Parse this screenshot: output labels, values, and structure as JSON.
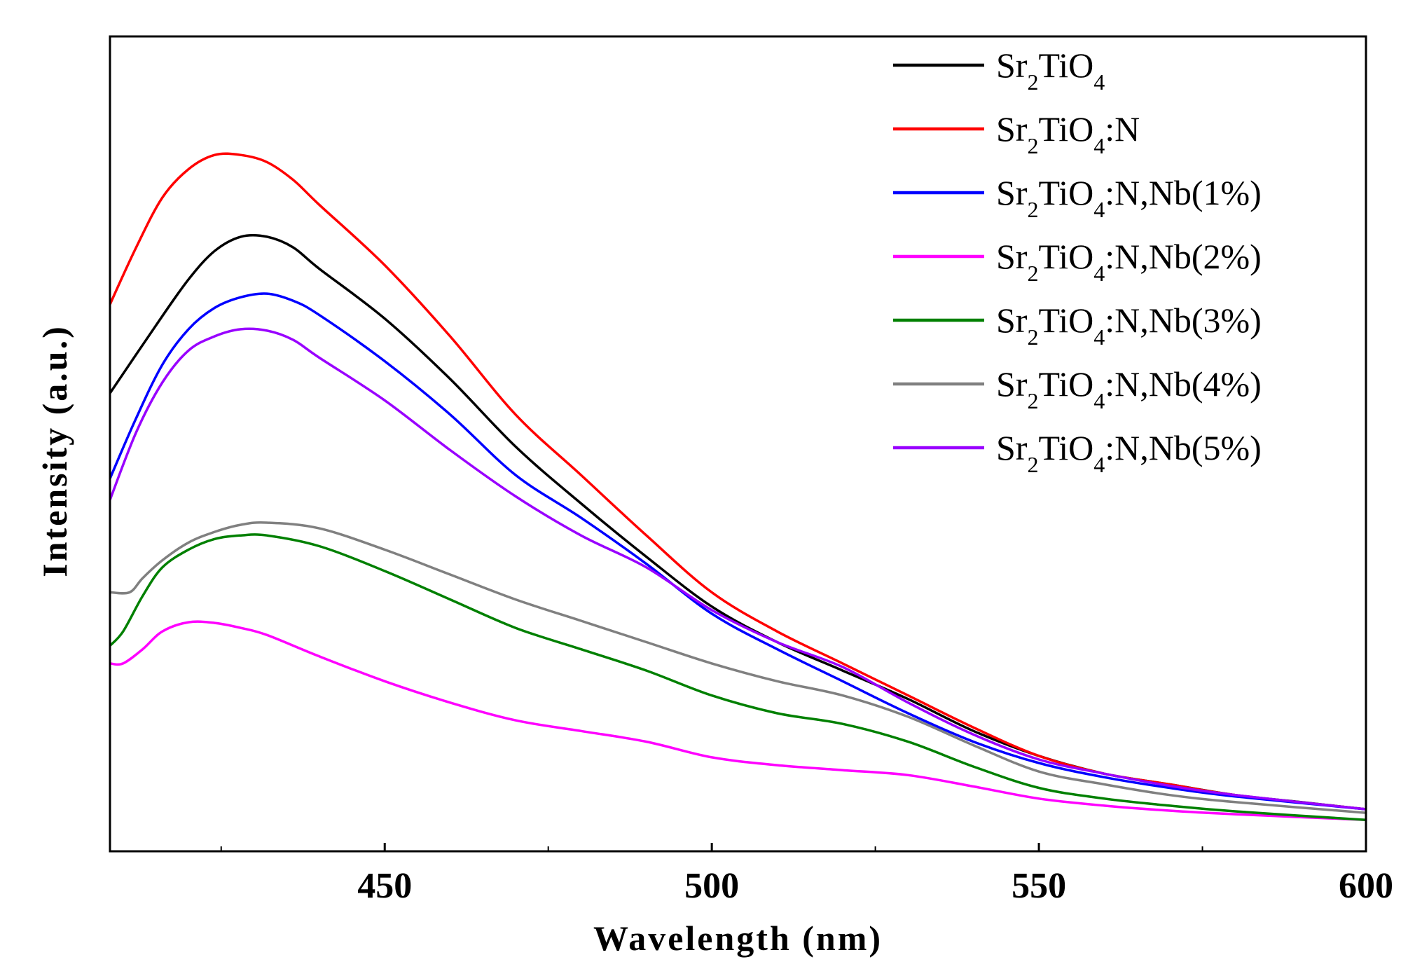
{
  "chart_data": {
    "type": "line",
    "title": "",
    "xlabel": "Wavelength (nm)",
    "ylabel": "Intensity (a.u.)",
    "xlim": [
      408,
      600
    ],
    "ylim": [
      0,
      100
    ],
    "xticks": [
      450,
      500,
      550,
      600
    ],
    "yticks_visible": false,
    "grid": false,
    "legend_position": "top-right",
    "series": [
      {
        "name": "Sr2TiO4",
        "base": "Sr",
        "sub1": "2",
        "mid": "TiO",
        "sub2": "4",
        "suffix": "",
        "color": "#000000",
        "x": [
          408,
          415,
          420,
          424,
          428,
          432,
          436,
          440,
          450,
          460,
          470,
          480,
          490,
          500,
          510,
          520,
          530,
          540,
          550,
          560,
          570,
          580,
          590,
          600
        ],
        "y": [
          58.5,
          68,
          74.5,
          78.5,
          80.5,
          80.5,
          79,
          76,
          69,
          60.5,
          51,
          43,
          35.5,
          28.5,
          23.5,
          19.5,
          15.5,
          11,
          7.5,
          5,
          3.5,
          2,
          1,
          0
        ]
      },
      {
        "name": "Sr2TiO4:N",
        "base": "Sr",
        "sub1": "2",
        "mid": "TiO",
        "sub2": "4",
        "suffix": ":N",
        "color": "#ff0000",
        "x": [
          408,
          412,
          416,
          420,
          424,
          428,
          432,
          436,
          440,
          450,
          460,
          470,
          480,
          490,
          500,
          510,
          520,
          530,
          540,
          550,
          560,
          570,
          580,
          600
        ],
        "y": [
          71,
          79,
          86,
          90,
          92,
          92,
          91,
          88.5,
          85,
          76.5,
          66.5,
          55.5,
          47,
          38.5,
          30.5,
          25,
          20.5,
          16,
          11.5,
          7.5,
          5,
          3.5,
          2,
          0
        ]
      },
      {
        "name": "Sr2TiO4:N,Nb(1%)",
        "base": "Sr",
        "sub1": "2",
        "mid": "TiO",
        "sub2": "4",
        "suffix": ":N,Nb(1%)",
        "color": "#0000ff",
        "x": [
          408,
          412,
          416,
          420,
          424,
          428,
          432,
          436,
          440,
          450,
          460,
          470,
          480,
          490,
          500,
          510,
          520,
          530,
          540,
          550,
          560,
          570,
          580,
          600
        ],
        "y": [
          46.5,
          55,
          62.5,
          67.5,
          70.5,
          72,
          72.5,
          71.5,
          69.5,
          63,
          55.5,
          47,
          41,
          34.5,
          27.5,
          22.5,
          18,
          13.5,
          9.5,
          6.5,
          4.5,
          3,
          1.8,
          0
        ]
      },
      {
        "name": "Sr2TiO4:N,Nb(2%)",
        "base": "Sr",
        "sub1": "2",
        "mid": "TiO",
        "sub2": "4",
        "suffix": ":N,Nb(2%)",
        "color": "#ff00ff",
        "x": [
          408,
          410,
          413,
          416,
          420,
          424,
          428,
          432,
          440,
          450,
          460,
          470,
          480,
          490,
          500,
          510,
          520,
          530,
          540,
          550,
          560,
          570,
          580,
          600
        ],
        "y": [
          20.5,
          20.5,
          22.5,
          25,
          26.3,
          26.2,
          25.5,
          24.5,
          21.5,
          18,
          15,
          12.5,
          11,
          9.5,
          7.3,
          6.2,
          5.5,
          4.8,
          3.2,
          1.5,
          0.5,
          -0.2,
          -0.7,
          -1.5
        ]
      },
      {
        "name": "Sr2TiO4:N,Nb(3%)",
        "base": "Sr",
        "sub1": "2",
        "mid": "TiO",
        "sub2": "4",
        "suffix": ":N,Nb(3%)",
        "color": "#008000",
        "x": [
          408,
          410,
          413,
          416,
          420,
          424,
          428,
          432,
          440,
          450,
          460,
          470,
          480,
          490,
          500,
          510,
          520,
          530,
          540,
          550,
          560,
          570,
          580,
          600
        ],
        "y": [
          23,
          25,
          30,
          34,
          36.5,
          38,
          38.5,
          38.5,
          37,
          33.5,
          29.5,
          25.5,
          22.5,
          19.5,
          16,
          13.5,
          12,
          9.5,
          6,
          3,
          1.5,
          0.5,
          -0.3,
          -1.5
        ]
      },
      {
        "name": "Sr2TiO4:N,Nb(4%)",
        "base": "Sr",
        "sub1": "2",
        "mid": "TiO",
        "sub2": "4",
        "suffix": ":N,Nb(4%)",
        "color": "#808080",
        "x": [
          408,
          411,
          413,
          416,
          420,
          424,
          428,
          432,
          440,
          450,
          460,
          470,
          480,
          490,
          500,
          510,
          520,
          530,
          540,
          550,
          560,
          570,
          580,
          600
        ],
        "y": [
          30.5,
          30.5,
          32.5,
          35,
          37.5,
          39,
          40,
          40.3,
          39.5,
          36.5,
          33,
          29.5,
          26.5,
          23.5,
          20.5,
          18,
          16,
          13,
          9,
          5.3,
          3.5,
          2,
          1,
          -0.5
        ]
      },
      {
        "name": "Sr2TiO4:N,Nb(5%)",
        "base": "Sr",
        "sub1": "2",
        "mid": "TiO",
        "sub2": "4",
        "suffix": ":N,Nb(5%)",
        "color": "#9900ff",
        "x": [
          408,
          412,
          416,
          420,
          424,
          428,
          432,
          436,
          440,
          450,
          460,
          470,
          480,
          490,
          500,
          510,
          520,
          530,
          540,
          550,
          560,
          570,
          580,
          600
        ],
        "y": [
          43.5,
          53,
          60,
          64.5,
          66.5,
          67.5,
          67.3,
          66,
          63.5,
          57.5,
          50.5,
          44,
          38.5,
          34,
          28,
          23.5,
          20,
          15,
          10.5,
          7,
          5,
          3.3,
          2,
          0
        ]
      }
    ]
  }
}
